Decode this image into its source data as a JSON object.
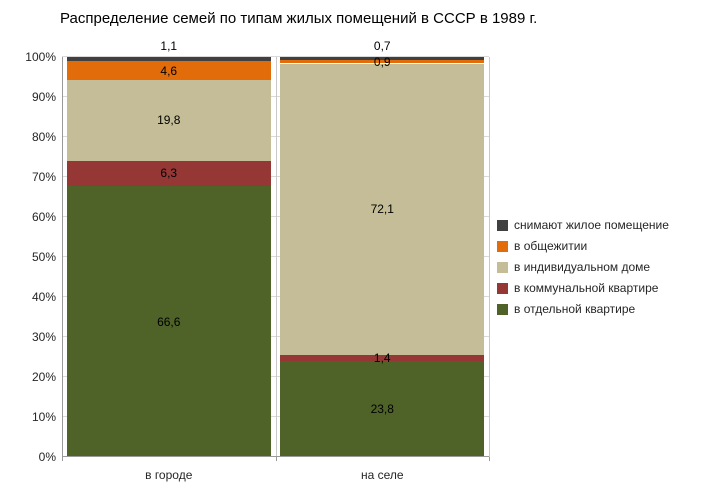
{
  "title": "Распределение семей по типам жилых помещений в СССР в 1989 г.",
  "chart_data": {
    "type": "bar",
    "variant": "stacked-100-percent-column",
    "title": "Распределение семей по типам жилых помещений в СССР в 1989 г.",
    "categories": [
      "в городе",
      "на селе"
    ],
    "series": [
      {
        "name": "в отдельной квартире",
        "color": "#4F6228",
        "values": [
          66.6,
          23.8
        ],
        "labels": [
          "66,6",
          "23,8"
        ]
      },
      {
        "name": "в коммунальной квартире",
        "color": "#953735",
        "values": [
          6.3,
          1.4
        ],
        "labels": [
          "6,3",
          "1,4"
        ]
      },
      {
        "name": "в индивидуальном доме",
        "color": "#C4BD97",
        "values": [
          19.8,
          72.1
        ],
        "labels": [
          "19,8",
          "72,1"
        ]
      },
      {
        "name": "в общежитии",
        "color": "#E36C0A",
        "values": [
          4.6,
          0.9
        ],
        "labels": [
          "4,6",
          "0,9"
        ]
      },
      {
        "name": "снимают жилое помещение",
        "color": "#404040",
        "values": [
          1.1,
          0.7
        ],
        "labels": [
          "1,1",
          "0,7"
        ]
      }
    ],
    "y_axis": {
      "min": 0,
      "max": 100,
      "tick_step": 10,
      "tick_labels": [
        "0%",
        "10%",
        "20%",
        "30%",
        "40%",
        "50%",
        "60%",
        "70%",
        "80%",
        "90%",
        "100%"
      ]
    },
    "legend": {
      "position": "right",
      "items_top_to_bottom": [
        "снимают жилое помещение",
        "в общежитии",
        "в индивидуальном доме",
        "в коммунальной квартире",
        "в отдельной квартире"
      ]
    },
    "grid": "horizontal",
    "colors": {
      "gridline": "#d9d9d9",
      "axis": "#9a9a9a",
      "label_text": "#000000",
      "tick_text": "#262626"
    }
  }
}
